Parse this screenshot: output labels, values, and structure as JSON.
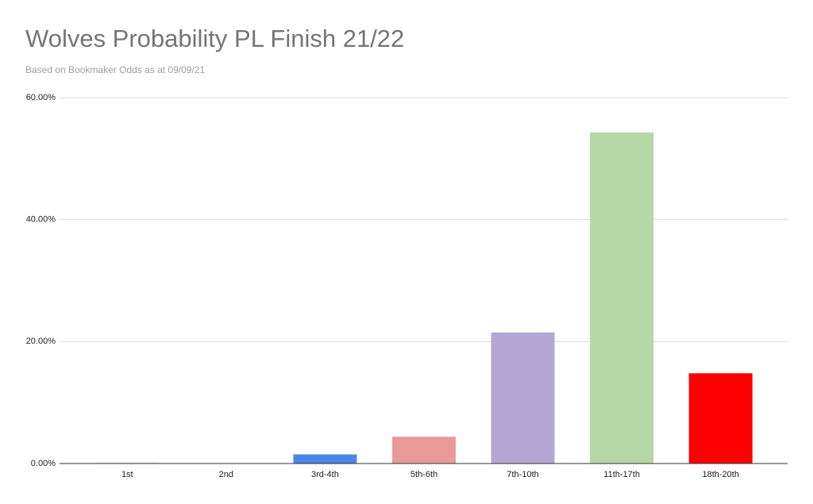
{
  "chart_data": {
    "type": "bar",
    "title": "Wolves Probability PL Finish 21/22",
    "subtitle": "Based on Bookmaker Odds as at 09/09/21",
    "categories": [
      "1st",
      "2nd",
      "3rd-4th",
      "5th-6th",
      "7th-10th",
      "11th-17th",
      "18th-20th"
    ],
    "values": [
      0.1,
      0.05,
      1.5,
      4.4,
      21.5,
      54.3,
      14.8
    ],
    "colors": [
      "#c9b37a",
      "#999999",
      "#4a86e8",
      "#ea9999",
      "#b4a7d6",
      "#b6d7a8",
      "#ff0000"
    ],
    "ylim": [
      0,
      60
    ],
    "yticks": [
      {
        "value": 0,
        "label": "0.00%"
      },
      {
        "value": 20,
        "label": "20.00%"
      },
      {
        "value": 40,
        "label": "40.00%"
      },
      {
        "value": 60,
        "label": "60.00%"
      }
    ],
    "grid": true
  }
}
